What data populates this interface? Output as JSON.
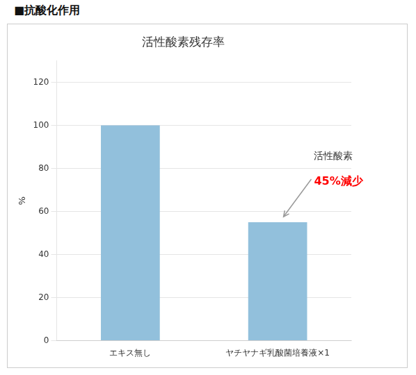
{
  "chart_data": {
    "type": "bar",
    "title": "活性酸素残存率",
    "subtitle": "■抗酸化作用",
    "ylabel": "%",
    "categories": [
      "エキス無し",
      "ヤチヤナギ乳酸菌培養液×1"
    ],
    "values": [
      100,
      55
    ],
    "color": "#92C0DC",
    "ylim": [
      0,
      130
    ],
    "yticks": [
      0,
      20,
      40,
      60,
      80,
      100,
      120
    ],
    "grid": true,
    "annotations": [
      {
        "text": "活性酸素",
        "color": "#333333"
      },
      {
        "text": "45%減少",
        "color": "#ff0000"
      }
    ]
  }
}
